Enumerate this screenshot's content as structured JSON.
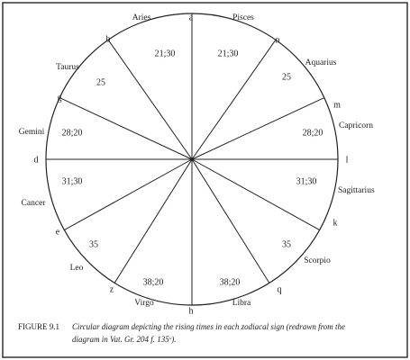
{
  "diagram": {
    "points": [
      "a",
      "n",
      "m",
      "l",
      "k",
      "q",
      "h",
      "z",
      "e",
      "d",
      "g",
      "b"
    ],
    "signs": [
      {
        "name": "Aries",
        "value": "21;30"
      },
      {
        "name": "Pisces",
        "value": "21;30"
      },
      {
        "name": "Aquarius",
        "value": "25"
      },
      {
        "name": "Capricorn",
        "value": "28;20"
      },
      {
        "name": "Sagittarius",
        "value": "31;30"
      },
      {
        "name": "Scorpio",
        "value": "35"
      },
      {
        "name": "Libra",
        "value": "38;20"
      },
      {
        "name": "Virgo",
        "value": "38;20"
      },
      {
        "name": "Leo",
        "value": "35"
      },
      {
        "name": "Cancer",
        "value": "31;30"
      },
      {
        "name": "Gemini",
        "value": "28;20"
      },
      {
        "name": "Taurus",
        "value": "25"
      }
    ]
  },
  "caption": {
    "label": "FIGURE 9.1",
    "lines": [
      "Circular diagram depicting the rising times in each zodiacal sign (redrawn from the",
      "diagram in Vat. Gr. 204 f. 135ᵛ)."
    ]
  }
}
